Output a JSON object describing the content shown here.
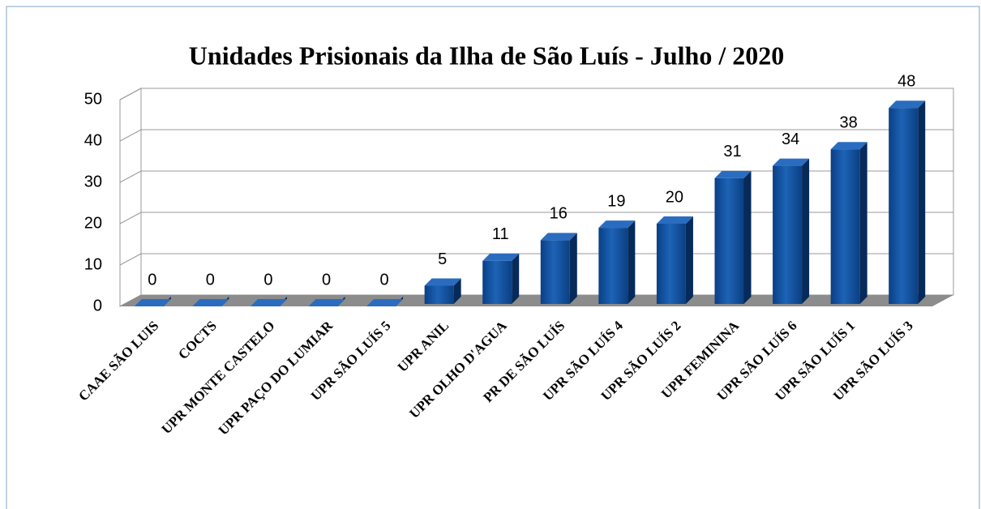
{
  "chart_data": {
    "type": "bar",
    "title": "Unidades Prisionais da Ilha de São Luís - Julho / 2020",
    "categories": [
      "CAAE SÃO LUIS",
      "COCTS",
      "UPR MONTE CASTELO",
      "UPR PAÇO DO LUMIAR",
      "UPR SÃO LUÍS 5",
      "UPR ANIL",
      "UPR OLHO D'AGUA",
      "PR DE SÃO LUÍS",
      "UPR SÃO LUÍS 4",
      "UPR SÃO LUÍS 2",
      "UPR FEMININA",
      "UPR SÃO LUÍS 6",
      "UPR SÃO LUÍS 1",
      "UPR SÃO LUÍS 3"
    ],
    "values": [
      0,
      0,
      0,
      0,
      0,
      5,
      11,
      16,
      19,
      20,
      31,
      34,
      38,
      48
    ],
    "color": "#0b4a98",
    "ylim": [
      0,
      50
    ],
    "yticks": [
      0,
      10,
      20,
      30,
      40,
      50
    ],
    "grid": true
  }
}
